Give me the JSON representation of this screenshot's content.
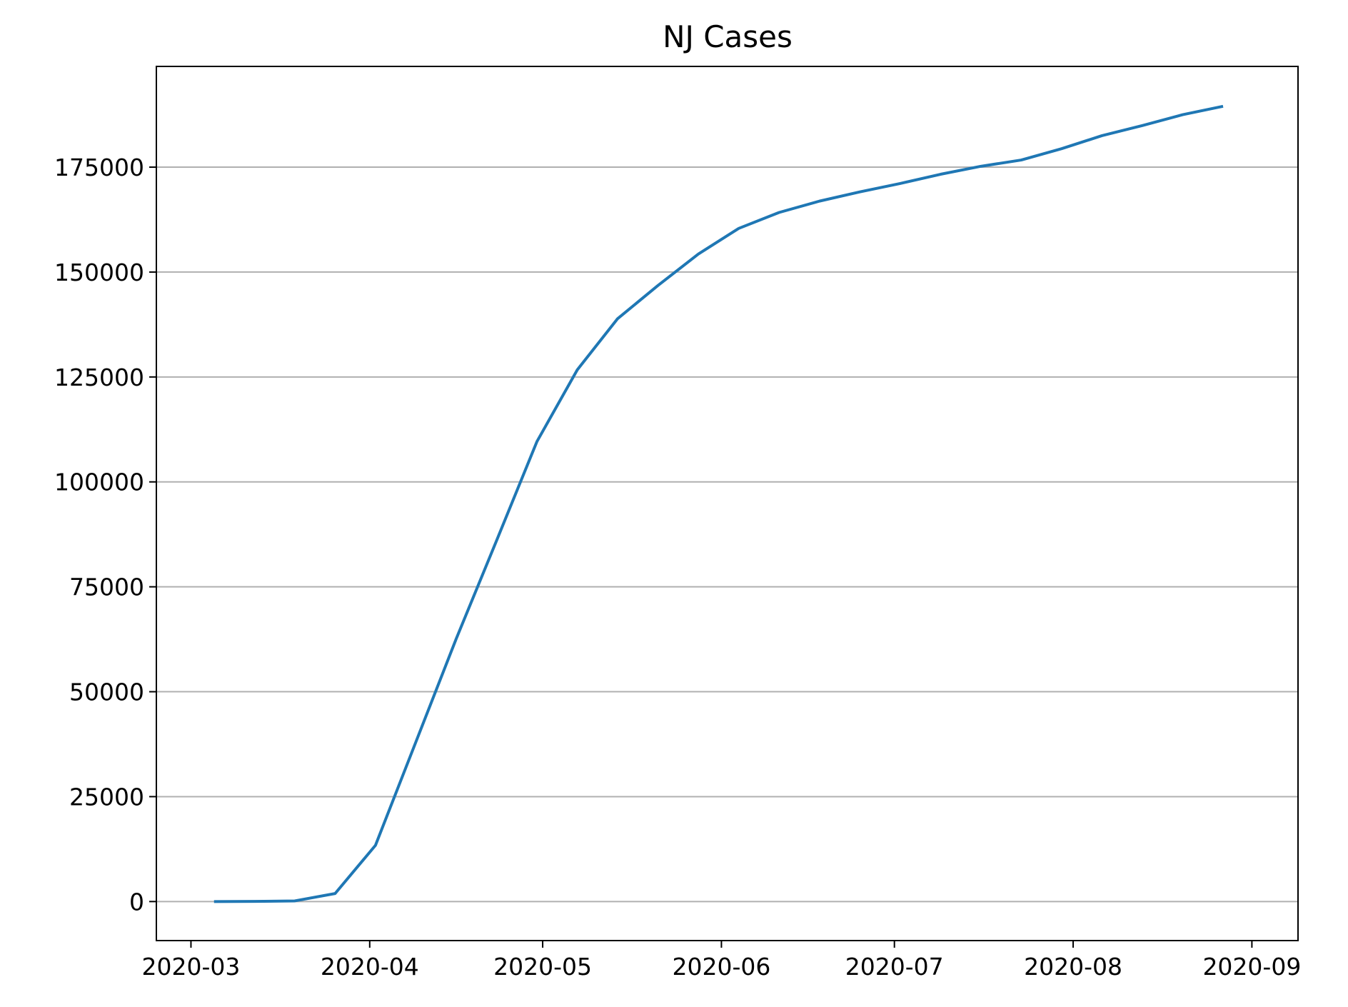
{
  "chart_data": {
    "type": "line",
    "title": "NJ Cases",
    "xlabel": "",
    "ylabel": "",
    "x_type": "date",
    "xlim": [
      "2020-02-24",
      "2020-09-09"
    ],
    "ylim": [
      -9300,
      199000
    ],
    "x_ticks": [
      "2020-03-01",
      "2020-04-01",
      "2020-05-01",
      "2020-06-01",
      "2020-07-01",
      "2020-08-01",
      "2020-09-01"
    ],
    "x_tick_labels": [
      "2020-03",
      "2020-04",
      "2020-05",
      "2020-06",
      "2020-07",
      "2020-08",
      "2020-09"
    ],
    "y_ticks": [
      0,
      25000,
      50000,
      75000,
      100000,
      125000,
      150000,
      175000
    ],
    "y_tick_labels": [
      "0",
      "25000",
      "50000",
      "75000",
      "100000",
      "125000",
      "150000",
      "175000"
    ],
    "grid": {
      "x": false,
      "y": true,
      "color": "#b0b0b0"
    },
    "legend": "none",
    "series": [
      {
        "color": "#1f77b4",
        "x": [
          "2020-03-05",
          "2020-03-12",
          "2020-03-19",
          "2020-03-26",
          "2020-04-02",
          "2020-04-09",
          "2020-04-16",
          "2020-04-23",
          "2020-04-30",
          "2020-05-07",
          "2020-05-14",
          "2020-05-21",
          "2020-05-28",
          "2020-06-04",
          "2020-06-11",
          "2020-06-18",
          "2020-06-25",
          "2020-07-02",
          "2020-07-09",
          "2020-07-16",
          "2020-07-23",
          "2020-07-30",
          "2020-08-06",
          "2020-08-13",
          "2020-08-20",
          "2020-08-27"
        ],
        "y": [
          2,
          29,
          156,
          1914,
          13400,
          38000,
          62600,
          86000,
          109600,
          126700,
          138900,
          146800,
          154300,
          160400,
          164200,
          166900,
          169100,
          171100,
          173300,
          175200,
          176700,
          179400,
          182500,
          184900,
          187500,
          189500
        ]
      }
    ]
  }
}
